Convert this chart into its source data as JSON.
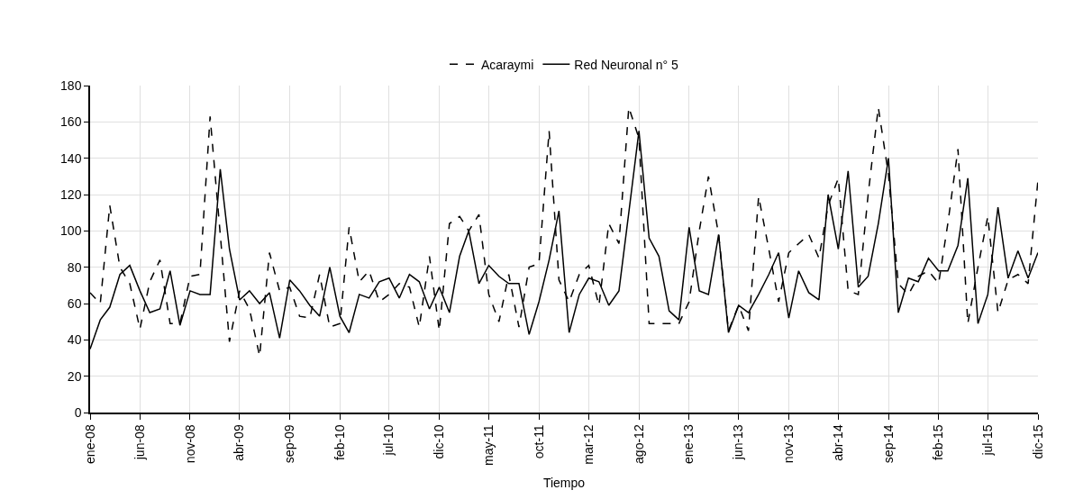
{
  "chart_data": {
    "type": "line",
    "xlabel": "Tiempo",
    "legend": "top",
    "grid": true,
    "marker": "none",
    "x": [
      "2008-01",
      "2008-02",
      "2008-03",
      "2008-04",
      "2008-05",
      "2008-06",
      "2008-07",
      "2008-08",
      "2008-09",
      "2008-10",
      "2008-11",
      "2008-12",
      "2009-01",
      "2009-02",
      "2009-03",
      "2009-04",
      "2009-05",
      "2009-06",
      "2009-07",
      "2009-08",
      "2009-09",
      "2009-10",
      "2009-11",
      "2009-12",
      "2010-01",
      "2010-02",
      "2010-03",
      "2010-04",
      "2010-05",
      "2010-06",
      "2010-07",
      "2010-08",
      "2010-09",
      "2010-10",
      "2010-11",
      "2010-12",
      "2011-01",
      "2011-02",
      "2011-03",
      "2011-04",
      "2011-05",
      "2011-06",
      "2011-07",
      "2011-08",
      "2011-09",
      "2011-10",
      "2011-11",
      "2011-12",
      "2012-01",
      "2012-02",
      "2012-03",
      "2012-04",
      "2012-05",
      "2012-06",
      "2012-07",
      "2012-08",
      "2012-09",
      "2012-10",
      "2012-11",
      "2012-12",
      "2013-01",
      "2013-02",
      "2013-03",
      "2013-04",
      "2013-05",
      "2013-06",
      "2013-07",
      "2013-08",
      "2013-09",
      "2013-10",
      "2013-11",
      "2013-12",
      "2014-01",
      "2014-02",
      "2014-03",
      "2014-04",
      "2014-05",
      "2014-06",
      "2014-07",
      "2014-08",
      "2014-09",
      "2014-10",
      "2014-11",
      "2014-12",
      "2015-01",
      "2015-02",
      "2015-03",
      "2015-04",
      "2015-05",
      "2015-06",
      "2015-07",
      "2015-08",
      "2015-09",
      "2015-10",
      "2015-11",
      "2015-12"
    ],
    "xlim": [
      "2008-01",
      "2015-12"
    ],
    "xticks": [
      {
        "value": "2008-01",
        "label": "ene-08"
      },
      {
        "value": "2008-06",
        "label": "jun-08"
      },
      {
        "value": "2008-11",
        "label": "nov-08"
      },
      {
        "value": "2009-04",
        "label": "abr-09"
      },
      {
        "value": "2009-09",
        "label": "sep-09"
      },
      {
        "value": "2010-02",
        "label": "feb-10"
      },
      {
        "value": "2010-07",
        "label": "jul-10"
      },
      {
        "value": "2010-12",
        "label": "dic-10"
      },
      {
        "value": "2011-05",
        "label": "may-11"
      },
      {
        "value": "2011-10",
        "label": "oct-11"
      },
      {
        "value": "2012-03",
        "label": "mar-12"
      },
      {
        "value": "2012-08",
        "label": "ago-12"
      },
      {
        "value": "2013-01",
        "label": "ene-13"
      },
      {
        "value": "2013-06",
        "label": "jun-13"
      },
      {
        "value": "2013-11",
        "label": "nov-13"
      },
      {
        "value": "2014-04",
        "label": "abr-14"
      },
      {
        "value": "2014-09",
        "label": "sep-14"
      },
      {
        "value": "2015-02",
        "label": "feb-15"
      },
      {
        "value": "2015-07",
        "label": "jul-15"
      },
      {
        "value": "2015-12",
        "label": "dic-15"
      }
    ],
    "ylim": [
      0,
      180
    ],
    "yticks": [
      0,
      20,
      40,
      60,
      80,
      100,
      120,
      140,
      160,
      180
    ],
    "series": [
      {
        "name": "Acaraymi",
        "color": "#000000",
        "line_style": "dashed",
        "values": [
          66,
          60,
          114,
          80,
          71,
          46,
          72,
          84,
          49,
          49,
          75,
          76,
          163,
          98,
          39,
          67,
          57,
          31,
          88,
          67,
          69,
          53,
          52,
          76,
          47,
          49,
          102,
          72,
          78,
          61,
          65,
          71,
          69,
          47,
          86,
          45,
          104,
          108,
          100,
          109,
          65,
          50,
          76,
          47,
          80,
          82,
          155,
          73,
          61,
          76,
          81,
          59,
          104,
          93,
          168,
          151,
          49,
          49,
          49,
          49,
          61,
          100,
          130,
          98,
          45,
          59,
          45,
          119,
          90,
          61,
          88,
          93,
          98,
          85,
          114,
          129,
          67,
          65,
          120,
          168,
          131,
          71,
          65,
          75,
          78,
          71,
          104,
          145,
          49,
          80,
          108,
          55,
          73,
          76,
          71,
          128
        ]
      },
      {
        "name": "Red Neuronal n° 5",
        "color": "#000000",
        "line_style": "solid",
        "values": [
          35,
          51,
          58,
          76,
          81,
          67,
          55,
          57,
          78,
          48,
          67,
          65,
          65,
          134,
          90,
          62,
          67,
          60,
          66,
          41,
          73,
          67,
          59,
          53,
          80,
          53,
          44,
          65,
          63,
          72,
          74,
          63,
          76,
          72,
          57,
          69,
          55,
          86,
          100,
          71,
          81,
          75,
          71,
          71,
          43,
          61,
          84,
          111,
          44,
          65,
          74,
          72,
          59,
          67,
          110,
          155,
          96,
          86,
          56,
          51,
          102,
          67,
          65,
          98,
          44,
          59,
          55,
          65,
          76,
          88,
          52,
          78,
          66,
          62,
          120,
          90,
          133,
          69,
          75,
          104,
          140,
          55,
          74,
          72,
          85,
          78,
          78,
          92,
          129,
          49,
          65,
          113,
          74,
          89,
          74,
          88
        ]
      }
    ]
  }
}
